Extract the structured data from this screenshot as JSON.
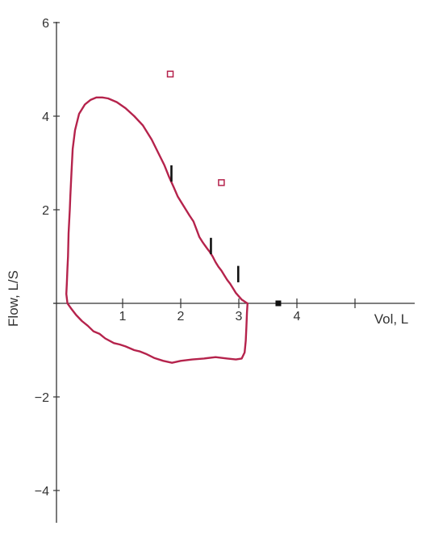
{
  "chart_data": {
    "type": "line",
    "xlabel": "Vol, L",
    "ylabel": "Flow, L/S",
    "xlim": [
      -0.1,
      5.9
    ],
    "ylim": [
      -4.6,
      6.05
    ],
    "x_ticks": [
      1,
      2,
      3,
      4,
      5
    ],
    "x_tick_labels": [
      "1",
      "2",
      "3",
      "4",
      ""
    ],
    "y_ticks": [
      6,
      4,
      2,
      0,
      -2,
      -4
    ],
    "y_tick_labels": [
      "6",
      "4",
      "2",
      "",
      "−2",
      "−4"
    ],
    "grid": false,
    "series": [
      {
        "kind": "loop",
        "color": "#b5234c",
        "points": [
          [
            0.05,
            0.75
          ],
          [
            0.06,
            1.0
          ],
          [
            0.07,
            1.5
          ],
          [
            0.09,
            2.0
          ],
          [
            0.1,
            2.3
          ],
          [
            0.12,
            2.8
          ],
          [
            0.14,
            3.3
          ],
          [
            0.18,
            3.7
          ],
          [
            0.25,
            4.05
          ],
          [
            0.35,
            4.25
          ],
          [
            0.45,
            4.35
          ],
          [
            0.55,
            4.4
          ],
          [
            0.65,
            4.4
          ],
          [
            0.75,
            4.38
          ],
          [
            0.9,
            4.3
          ],
          [
            1.05,
            4.17
          ],
          [
            1.2,
            4.0
          ],
          [
            1.35,
            3.8
          ],
          [
            1.5,
            3.5
          ],
          [
            1.62,
            3.2
          ],
          [
            1.72,
            2.95
          ],
          [
            1.8,
            2.7
          ],
          [
            1.88,
            2.48
          ],
          [
            1.95,
            2.28
          ],
          [
            2.05,
            2.08
          ],
          [
            2.15,
            1.88
          ],
          [
            2.22,
            1.75
          ],
          [
            2.28,
            1.55
          ],
          [
            2.32,
            1.42
          ],
          [
            2.38,
            1.3
          ],
          [
            2.45,
            1.18
          ],
          [
            2.5,
            1.1
          ],
          [
            2.55,
            1.0
          ],
          [
            2.6,
            0.88
          ],
          [
            2.65,
            0.78
          ],
          [
            2.7,
            0.7
          ],
          [
            2.75,
            0.6
          ],
          [
            2.8,
            0.5
          ],
          [
            2.85,
            0.42
          ],
          [
            2.9,
            0.32
          ],
          [
            2.95,
            0.22
          ],
          [
            3.0,
            0.15
          ],
          [
            3.05,
            0.08
          ],
          [
            3.12,
            0.02
          ],
          [
            3.15,
            0.0
          ],
          [
            3.14,
            -0.2
          ],
          [
            3.13,
            -0.5
          ],
          [
            3.12,
            -0.8
          ],
          [
            3.1,
            -1.05
          ],
          [
            3.05,
            -1.18
          ],
          [
            2.95,
            -1.2
          ],
          [
            2.8,
            -1.18
          ],
          [
            2.6,
            -1.15
          ],
          [
            2.4,
            -1.18
          ],
          [
            2.2,
            -1.2
          ],
          [
            2.0,
            -1.23
          ],
          [
            1.85,
            -1.27
          ],
          [
            1.7,
            -1.23
          ],
          [
            1.55,
            -1.17
          ],
          [
            1.4,
            -1.08
          ],
          [
            1.3,
            -1.03
          ],
          [
            1.2,
            -1.0
          ],
          [
            1.05,
            -0.92
          ],
          [
            0.95,
            -0.88
          ],
          [
            0.85,
            -0.85
          ],
          [
            0.7,
            -0.75
          ],
          [
            0.6,
            -0.65
          ],
          [
            0.5,
            -0.6
          ],
          [
            0.4,
            -0.48
          ],
          [
            0.3,
            -0.38
          ],
          [
            0.2,
            -0.25
          ],
          [
            0.12,
            -0.12
          ],
          [
            0.05,
            0.0
          ],
          [
            0.03,
            0.2
          ],
          [
            0.04,
            0.45
          ],
          [
            0.05,
            0.75
          ]
        ]
      }
    ],
    "markers": [
      {
        "x": 1.82,
        "y": 4.9,
        "shape": "open-square",
        "color": "#b5234c"
      },
      {
        "x": 2.7,
        "y": 2.58,
        "shape": "open-square",
        "color": "#b5234c"
      },
      {
        "x": 3.68,
        "y": 0.0,
        "shape": "filled-square",
        "color": "#111111"
      },
      {
        "x": 1.84,
        "y0": 2.6,
        "y1": 2.95,
        "shape": "bar",
        "color": "#111111"
      },
      {
        "x": 2.52,
        "y0": 1.05,
        "y1": 1.4,
        "shape": "bar",
        "color": "#111111"
      },
      {
        "x": 2.99,
        "y0": 0.45,
        "y1": 0.8,
        "shape": "bar",
        "color": "#111111"
      }
    ]
  }
}
